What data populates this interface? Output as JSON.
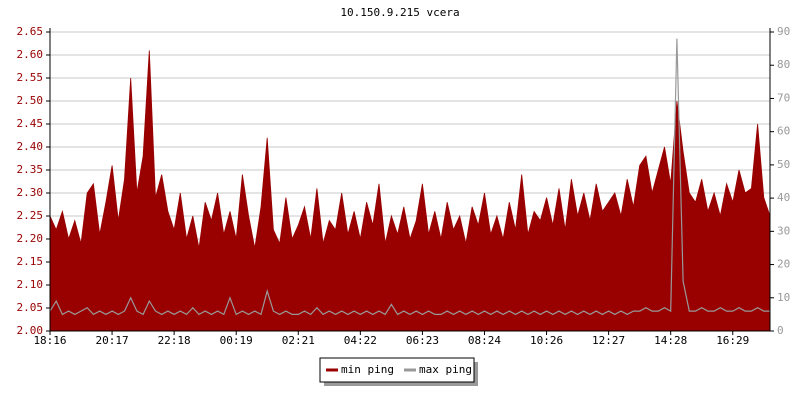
{
  "chart_data": {
    "type": "area_line",
    "title": "10.150.9.215 vcera",
    "categories": [
      "18:16",
      null,
      null,
      null,
      null,
      null,
      null,
      null,
      null,
      null,
      "20:17",
      null,
      null,
      null,
      null,
      null,
      null,
      null,
      null,
      null,
      "22:18",
      null,
      null,
      null,
      null,
      null,
      null,
      null,
      null,
      null,
      "00:19",
      null,
      null,
      null,
      null,
      null,
      null,
      null,
      null,
      null,
      "02:21",
      null,
      null,
      null,
      null,
      null,
      null,
      null,
      null,
      null,
      "04:22",
      null,
      null,
      null,
      null,
      null,
      null,
      null,
      null,
      null,
      "06:23",
      null,
      null,
      null,
      null,
      null,
      null,
      null,
      null,
      null,
      "08:24",
      null,
      null,
      null,
      null,
      null,
      null,
      null,
      null,
      null,
      "10:26",
      null,
      null,
      null,
      null,
      null,
      null,
      null,
      null,
      null,
      "12:27",
      null,
      null,
      null,
      null,
      null,
      null,
      null,
      null,
      null,
      "14:28",
      null,
      null,
      null,
      null,
      null,
      null,
      null,
      null,
      null,
      "16:29",
      null,
      null,
      null,
      null,
      null,
      null
    ],
    "series": [
      {
        "name": "min ping",
        "color": "#990000",
        "axis": "y",
        "values": [
          2.25,
          2.22,
          2.26,
          2.2,
          2.24,
          2.19,
          2.3,
          2.32,
          2.21,
          2.28,
          2.36,
          2.24,
          2.33,
          2.55,
          2.3,
          2.38,
          2.61,
          2.29,
          2.34,
          2.26,
          2.22,
          2.3,
          2.2,
          2.25,
          2.18,
          2.28,
          2.24,
          2.3,
          2.21,
          2.26,
          2.2,
          2.34,
          2.25,
          2.18,
          2.27,
          2.42,
          2.22,
          2.19,
          2.29,
          2.2,
          2.23,
          2.27,
          2.2,
          2.31,
          2.19,
          2.24,
          2.22,
          2.3,
          2.21,
          2.26,
          2.2,
          2.28,
          2.23,
          2.32,
          2.19,
          2.25,
          2.21,
          2.27,
          2.2,
          2.24,
          2.32,
          2.21,
          2.26,
          2.2,
          2.28,
          2.22,
          2.25,
          2.19,
          2.27,
          2.23,
          2.3,
          2.21,
          2.25,
          2.2,
          2.28,
          2.22,
          2.34,
          2.21,
          2.26,
          2.24,
          2.29,
          2.23,
          2.31,
          2.22,
          2.33,
          2.25,
          2.3,
          2.24,
          2.32,
          2.26,
          2.28,
          2.3,
          2.25,
          2.33,
          2.27,
          2.36,
          2.38,
          2.3,
          2.35,
          2.4,
          2.32,
          2.5,
          2.39,
          2.3,
          2.28,
          2.33,
          2.26,
          2.3,
          2.25,
          2.32,
          2.28,
          2.35,
          2.3,
          2.31,
          2.45,
          2.29,
          2.25
        ]
      },
      {
        "name": "max ping",
        "color": "#999999",
        "axis": "y2",
        "values": [
          6,
          9,
          5,
          6,
          5,
          6,
          7,
          5,
          6,
          5,
          6,
          5,
          6,
          10,
          6,
          5,
          9,
          6,
          5,
          6,
          5,
          6,
          5,
          7,
          5,
          6,
          5,
          6,
          5,
          10,
          5,
          6,
          5,
          6,
          5,
          12,
          6,
          5,
          6,
          5,
          5,
          6,
          5,
          7,
          5,
          6,
          5,
          6,
          5,
          6,
          5,
          6,
          5,
          6,
          5,
          8,
          5,
          6,
          5,
          6,
          5,
          6,
          5,
          5,
          6,
          5,
          6,
          5,
          6,
          5,
          6,
          5,
          6,
          5,
          6,
          5,
          6,
          5,
          6,
          5,
          6,
          5,
          6,
          5,
          6,
          5,
          6,
          5,
          6,
          5,
          6,
          5,
          6,
          5,
          6,
          6,
          7,
          6,
          6,
          7,
          6,
          88,
          15,
          6,
          6,
          7,
          6,
          6,
          7,
          6,
          6,
          7,
          6,
          6,
          7,
          6,
          6
        ]
      }
    ],
    "ylim": [
      2.0,
      2.65
    ],
    "yticks": [
      {
        "value": 2.0,
        "label": "2.00"
      },
      {
        "value": 2.05,
        "label": "2.05"
      },
      {
        "value": 2.1,
        "label": "2.10"
      },
      {
        "value": 2.15,
        "label": "2.15"
      },
      {
        "value": 2.2,
        "label": "2.20"
      },
      {
        "value": 2.25,
        "label": "2.25"
      },
      {
        "value": 2.3,
        "label": "2.30"
      },
      {
        "value": 2.35,
        "label": "2.35"
      },
      {
        "value": 2.4,
        "label": "2.40"
      },
      {
        "value": 2.45,
        "label": "2.45"
      },
      {
        "value": 2.5,
        "label": "2.50"
      },
      {
        "value": 2.55,
        "label": "2.55"
      },
      {
        "value": 2.6,
        "label": "2.60"
      },
      {
        "value": 2.65,
        "label": "2.65"
      }
    ],
    "y2lim": [
      0,
      90
    ],
    "y2ticks": [
      0,
      10,
      20,
      30,
      40,
      50,
      60,
      70,
      80,
      90
    ],
    "grid": true
  }
}
